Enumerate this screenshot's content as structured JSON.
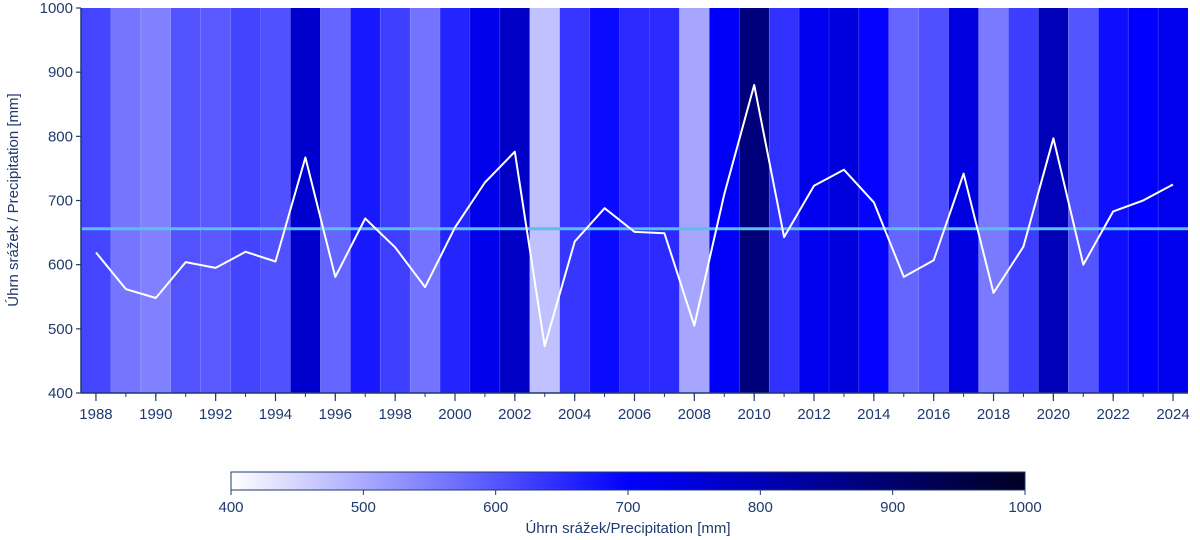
{
  "chart_data": {
    "type": "line",
    "ylabel": "Úhrn srážek / Precipitation [mm]",
    "ylim": [
      400,
      1000
    ],
    "yticks": [
      400,
      500,
      600,
      700,
      800,
      900,
      1000
    ],
    "xlim": [
      1987.5,
      2024.5
    ],
    "xticks": [
      1988,
      1990,
      1992,
      1994,
      1996,
      1998,
      2000,
      2002,
      2004,
      2006,
      2008,
      2010,
      2012,
      2014,
      2016,
      2018,
      2020,
      2022,
      2024
    ],
    "xticklabels": [
      "1988",
      "1990",
      "1992",
      "1994",
      "1996",
      "1998",
      "2000",
      "2002",
      "2004",
      "2006",
      "2008",
      "2010",
      "2012",
      "2014",
      "2016",
      "2018",
      "2020",
      "2022",
      "2024"
    ],
    "years": [
      1988,
      1989,
      1990,
      1991,
      1992,
      1993,
      1994,
      1995,
      1996,
      1997,
      1998,
      1999,
      2000,
      2001,
      2002,
      2003,
      2004,
      2005,
      2006,
      2007,
      2008,
      2009,
      2010,
      2011,
      2012,
      2013,
      2014,
      2015,
      2016,
      2017,
      2018,
      2019,
      2020,
      2021,
      2022,
      2023,
      2024
    ],
    "precipitation": [
      619,
      562,
      548,
      604,
      595,
      620,
      605,
      767,
      581,
      672,
      627,
      565,
      658,
      728,
      776,
      473,
      636,
      688,
      651,
      649,
      505,
      710,
      880,
      643,
      723,
      748,
      697,
      581,
      607,
      742,
      556,
      628,
      797,
      600,
      683,
      700,
      725
    ],
    "mean_line": 656,
    "grid": false,
    "colors": {
      "line": "#ffffff",
      "mean_line": "#5bc0e8",
      "axis": "#1f3a6e",
      "separator": "#d0d8ff"
    },
    "colorbar": {
      "label": "Úhrn srážek/Precipitation [mm]",
      "range": [
        400,
        1000
      ],
      "ticks": [
        400,
        500,
        600,
        700,
        800,
        900,
        1000
      ],
      "ticklabels": [
        "400",
        "500",
        "600",
        "700",
        "800",
        "900",
        "1000"
      ],
      "stops": [
        {
          "value": 400,
          "color": "#ffffff"
        },
        {
          "value": 700,
          "color": "#0000ff"
        },
        {
          "value": 1000,
          "color": "#000022"
        }
      ]
    }
  }
}
